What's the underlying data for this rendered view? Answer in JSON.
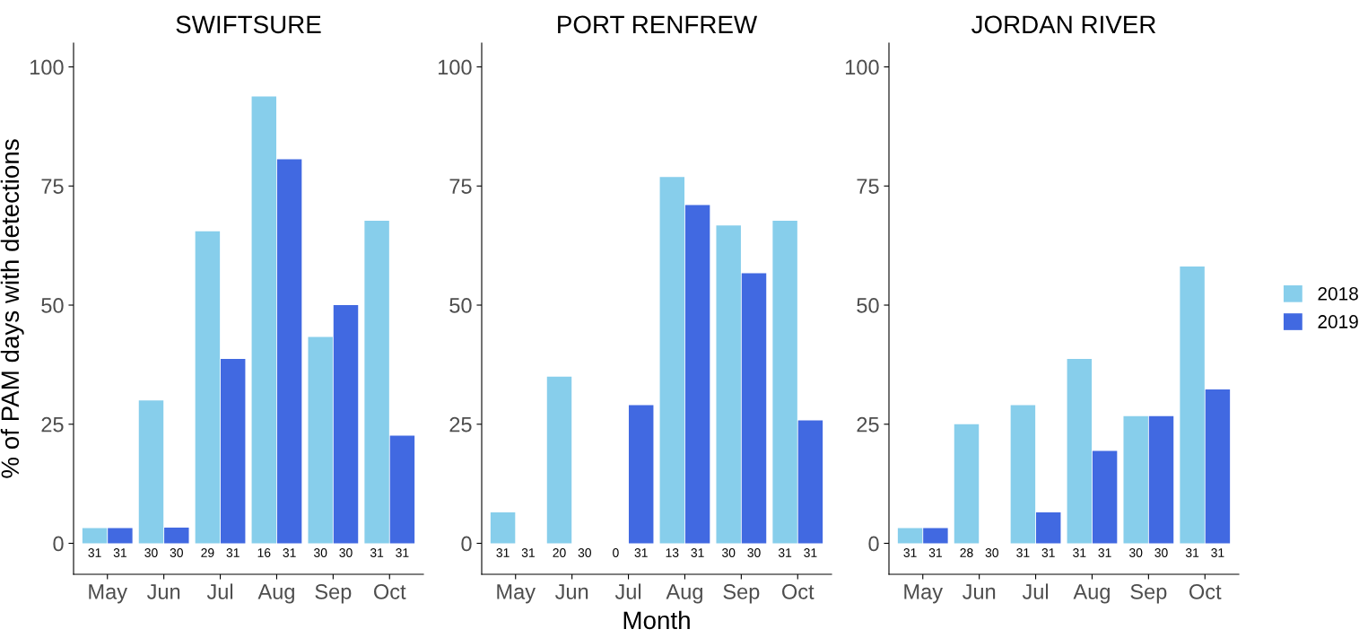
{
  "chart_data": [
    {
      "type": "bar",
      "title": "SWIFTSURE",
      "ylabel": "% of PAM days with detections",
      "categories": [
        "May",
        "Jun",
        "Jul",
        "Aug",
        "Sep",
        "Oct"
      ],
      "ylim": [
        -6.5,
        105
      ],
      "yticks": [
        0,
        25,
        50,
        75,
        100
      ],
      "grid": false,
      "legend": false,
      "annotations": [
        "31",
        "31",
        "30",
        "30",
        "29",
        "31",
        "16",
        "31",
        "30",
        "30",
        "31",
        "31"
      ],
      "series": [
        {
          "color": "#87ceeb",
          "values": [
            3.2,
            30,
            65.5,
            93.8,
            43.3,
            67.7
          ]
        },
        {
          "color": "#4169e1",
          "values": [
            3.2,
            3.3,
            38.7,
            80.6,
            50,
            22.6
          ]
        }
      ]
    },
    {
      "type": "bar",
      "title": "PORT RENFREW",
      "xlabel": "Month",
      "categories": [
        "May",
        "Jun",
        "Jul",
        "Aug",
        "Sep",
        "Oct"
      ],
      "ylim": [
        -6.5,
        105
      ],
      "yticks": [
        0,
        25,
        50,
        75,
        100
      ],
      "grid": false,
      "legend": false,
      "annotations": [
        "31",
        "31",
        "20",
        "30",
        "0",
        "31",
        "13",
        "31",
        "30",
        "30",
        "31",
        "31"
      ],
      "series": [
        {
          "color": "#87ceeb",
          "values": [
            6.5,
            35,
            null,
            76.9,
            66.7,
            67.7
          ]
        },
        {
          "color": "#4169e1",
          "values": [
            0,
            0,
            29,
            71,
            56.7,
            25.8
          ]
        }
      ]
    },
    {
      "type": "bar",
      "title": "JORDAN RIVER",
      "categories": [
        "May",
        "Jun",
        "Jul",
        "Aug",
        "Sep",
        "Oct"
      ],
      "ylim": [
        -6.5,
        105
      ],
      "yticks": [
        0,
        25,
        50,
        75,
        100
      ],
      "grid": false,
      "legend": "right",
      "annotations": [
        "31",
        "31",
        "28",
        "30",
        "31",
        "31",
        "31",
        "31",
        "30",
        "30",
        "31",
        "31"
      ],
      "series": [
        {
          "name": "2018",
          "color": "#87ceeb",
          "values": [
            3.2,
            25,
            29,
            38.7,
            26.7,
            58.1
          ]
        },
        {
          "name": "2019",
          "color": "#4169e1",
          "values": [
            3.2,
            0,
            6.5,
            19.4,
            26.7,
            32.3
          ]
        }
      ]
    }
  ]
}
